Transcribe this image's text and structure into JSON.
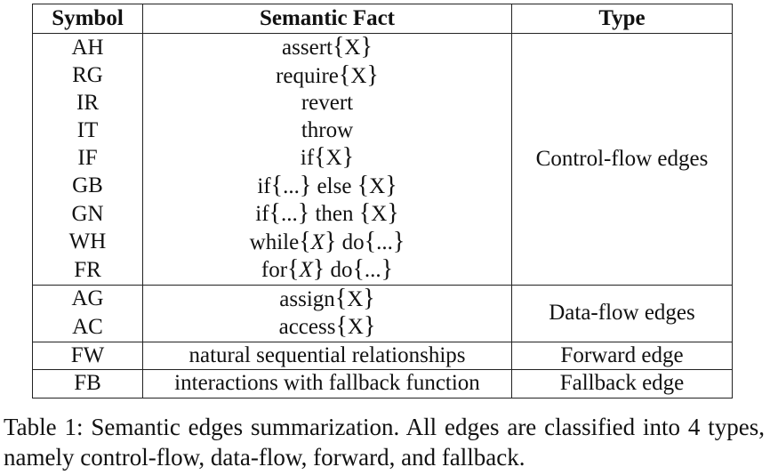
{
  "table": {
    "headers": {
      "symbol": "Symbol",
      "fact": "Semantic Fact",
      "type": "Type"
    },
    "groups": [
      {
        "type": "Control-flow edges",
        "rows": [
          {
            "symbol": "AH",
            "fact": [
              "assert",
              "{",
              "X",
              "}"
            ]
          },
          {
            "symbol": "RG",
            "fact": [
              "require",
              "{",
              "X",
              "}"
            ]
          },
          {
            "symbol": "IR",
            "fact": [
              "revert"
            ]
          },
          {
            "symbol": "IT",
            "fact": [
              "throw"
            ]
          },
          {
            "symbol": "IF",
            "fact": [
              "if",
              "{",
              "X",
              "}"
            ]
          },
          {
            "symbol": "GB",
            "fact": [
              "if",
              "{",
              "...",
              "}",
              " else ",
              "{",
              "X",
              "}"
            ]
          },
          {
            "symbol": "GN",
            "fact": [
              "if",
              "{",
              "...",
              "}",
              " then ",
              "{",
              "X",
              "}"
            ]
          },
          {
            "symbol": "WH",
            "fact": [
              "while",
              "{",
              "X",
              "}",
              " do",
              "{",
              "...",
              "}"
            ]
          },
          {
            "symbol": "FR",
            "fact": [
              "for",
              "{",
              "X",
              "}",
              " do",
              "{",
              "...",
              "}"
            ]
          }
        ]
      },
      {
        "type": "Data-flow edges",
        "rows": [
          {
            "symbol": "AG",
            "fact": [
              "assign",
              "{",
              "X",
              "}"
            ]
          },
          {
            "symbol": "AC",
            "fact": [
              "access",
              "{",
              "X",
              "}"
            ]
          }
        ]
      },
      {
        "type": "Forward edge",
        "rows": [
          {
            "symbol": "FW",
            "fact": [
              "natural sequential relationships"
            ]
          }
        ]
      },
      {
        "type": "Fallback edge",
        "rows": [
          {
            "symbol": "FB",
            "fact": [
              "interactions with fallback function"
            ]
          }
        ]
      }
    ]
  },
  "caption": {
    "text": "Table 1: Semantic edges summarization. All edges are classified into 4 types, namely control-flow, data-flow, forward, and fallback."
  }
}
